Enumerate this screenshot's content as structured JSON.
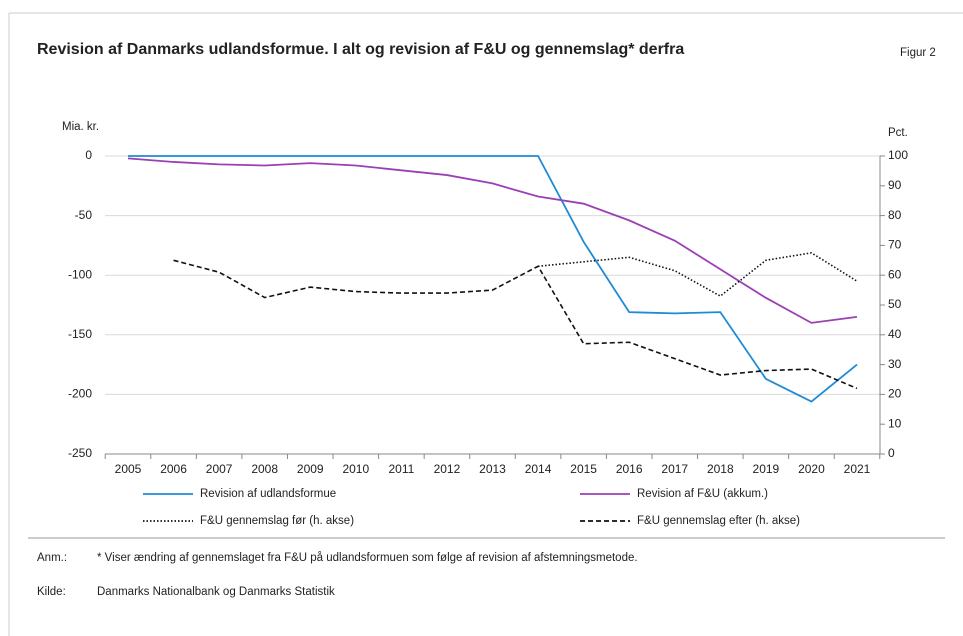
{
  "chart_data": {
    "type": "line",
    "title": "Revision af Danmarks udlandsformue. I alt og revision af F&U og gennemslag* derfra",
    "figure_label": "Figur 2",
    "ylabel": "Mia. kr.",
    "y2label": "Pct.",
    "categories": [
      "2005",
      "2006",
      "2007",
      "2008",
      "2009",
      "2010",
      "2011",
      "2012",
      "2013",
      "2014",
      "2015",
      "2016",
      "2017",
      "2018",
      "2019",
      "2020",
      "2021"
    ],
    "ylim": [
      -250,
      0
    ],
    "yticks": [
      0,
      -50,
      -100,
      -150,
      -200,
      -250
    ],
    "y2lim": [
      0,
      100
    ],
    "y2ticks": [
      100,
      90,
      80,
      70,
      60,
      50,
      40,
      30,
      20,
      10,
      0
    ],
    "grid": true,
    "series": [
      {
        "name": "Revision af udlandsformue",
        "color": "#1f8ad6",
        "linestyle": "solid",
        "values": [
          0,
          0,
          0,
          0,
          0,
          0,
          0,
          0,
          0,
          0,
          -72,
          -131,
          -132,
          -131,
          -187,
          -206,
          -175
        ]
      },
      {
        "name": "Revision af F&U (akkum.)",
        "color": "#9b3fb5",
        "linestyle": "solid",
        "values": [
          -2,
          -5,
          -7,
          -8,
          -6,
          -8,
          -12,
          -16,
          -23,
          -34,
          -40,
          -54,
          -71,
          -95,
          -119,
          -140,
          -135
        ]
      },
      {
        "name": "F&U gennemslag før (h. akse)",
        "color": "#111111",
        "linestyle": "dotted",
        "axis": "y2",
        "values": [
          null,
          null,
          null,
          null,
          null,
          null,
          null,
          null,
          null,
          63,
          64.5,
          66,
          61.5,
          53,
          65,
          67.5,
          58
        ]
      },
      {
        "name": "F&U gennemslag efter (h. akse)",
        "color": "#111111",
        "linestyle": "dashed",
        "axis": "y2",
        "values": [
          null,
          65,
          61,
          52.5,
          56,
          54.5,
          54,
          54,
          55,
          63,
          37,
          37.5,
          32,
          26.5,
          28,
          28.5,
          22
        ]
      }
    ],
    "notes": [
      {
        "label": "Anm.:",
        "text": "* Viser ændring af gennemslaget fra F&U på udlandsformuen som følge af revision af afstemningsmetode."
      },
      {
        "label": "Kilde:",
        "text": "Danmarks Nationalbank og Danmarks Statistik"
      }
    ]
  }
}
